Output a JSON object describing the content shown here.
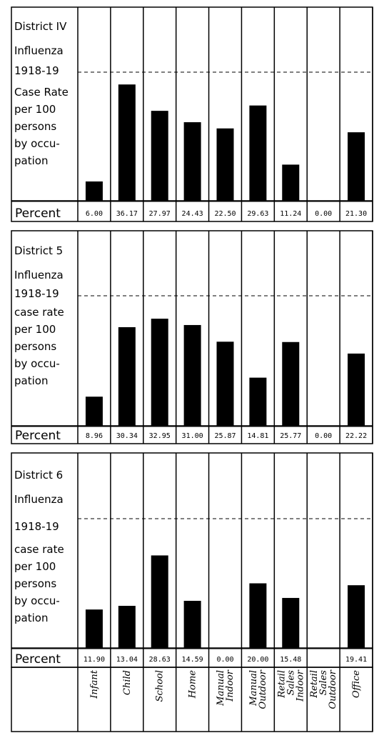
{
  "chart_data": [
    {
      "type": "bar",
      "title_lines": [
        "District IV",
        "Influenza",
        "1918-19",
        "Case Rate",
        "per 100",
        "persons",
        "by occu-",
        "pation"
      ],
      "row_label": "Percent",
      "categories": [
        "Infant",
        "Child",
        "School",
        "Home",
        "Manual Indoor",
        "Manual Outdoor",
        "Retail Sales Indoor",
        "Retail Sales Outdoor",
        "Office"
      ],
      "values": [
        6.0,
        36.17,
        27.97,
        24.43,
        22.5,
        29.63,
        11.24,
        0.0,
        21.3
      ],
      "value_labels": [
        "6.00",
        "36.17",
        "27.97",
        "24.43",
        "22.50",
        "29.63",
        "11.24",
        "0.00",
        "21.30"
      ],
      "ylim": [
        0,
        40
      ]
    },
    {
      "type": "bar",
      "title_lines": [
        "District 5",
        "Influenza",
        "1918-19",
        "case rate",
        "per 100",
        "persons",
        "by occu-",
        "pation"
      ],
      "row_label": "Percent",
      "categories": [
        "Infant",
        "Child",
        "School",
        "Home",
        "Manual Indoor",
        "Manual Outdoor",
        "Retail Sales Indoor",
        "Retail Sales Outdoor",
        "Office"
      ],
      "values": [
        8.96,
        30.34,
        32.95,
        31.0,
        25.87,
        14.81,
        25.77,
        0.0,
        22.22
      ],
      "value_labels": [
        "8.96",
        "30.34",
        "32.95",
        "31.00",
        "25.87",
        "14.81",
        "25.77",
        "0.00",
        "22.22"
      ],
      "ylim": [
        0,
        40
      ]
    },
    {
      "type": "bar",
      "title_lines": [
        "District 6",
        "Influenza",
        "1918-19",
        "case rate",
        "per 100",
        "persons",
        "by occu-",
        "pation"
      ],
      "row_label": "Percent",
      "categories": [
        "Infant",
        "Child",
        "School",
        "Home",
        "Manual Indoor",
        "Manual Outdoor",
        "Retail Sales Indoor",
        "Retail Sales Outdoor",
        "Office"
      ],
      "values": [
        11.9,
        13.04,
        28.63,
        14.59,
        0.0,
        20.0,
        15.48,
        0,
        19.41
      ],
      "value_labels": [
        "11.90",
        "13.04",
        "28.63",
        "14.59",
        "0.00",
        "20.00",
        "15.48",
        "",
        "19.41"
      ],
      "ylim": [
        0,
        40
      ]
    }
  ],
  "category_lines": [
    [
      "Infant"
    ],
    [
      "Child"
    ],
    [
      "School"
    ],
    [
      "Home"
    ],
    [
      "Manual",
      "Indoor"
    ],
    [
      "Manual",
      "Outdoor"
    ],
    [
      "Retail",
      "Sales",
      "Indoor"
    ],
    [
      "Retail",
      "Sales",
      "Outdoor"
    ],
    [
      "Office"
    ]
  ],
  "colors": {
    "ink": "#000000",
    "paper": "#ffffff"
  }
}
